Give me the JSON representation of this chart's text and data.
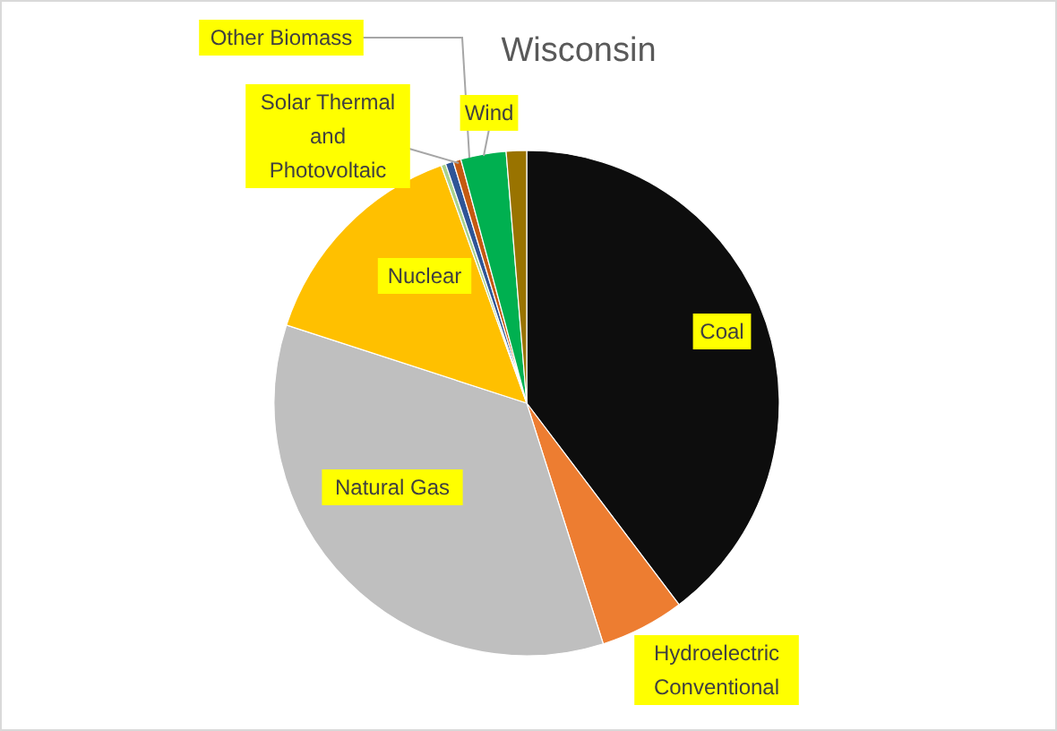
{
  "chart_data": {
    "type": "pie",
    "title": "Wisconsin",
    "categories": [
      "Coal",
      "Hydroelectric Conventional",
      "Natural Gas",
      "Nuclear",
      null,
      "Solar Thermal and Photovoltaic",
      "Other Biomass",
      "Wind",
      null
    ],
    "values": [
      39.7,
      5.4,
      34.9,
      14.5,
      0.3,
      0.5,
      0.5,
      2.9,
      1.3
    ],
    "colors": [
      "#0d0d0d",
      "#ed7d31",
      "#bfbfbf",
      "#ffc000",
      "#a9d18e",
      "#2f5597",
      "#c55a11",
      "#00b050",
      "#997300"
    ]
  }
}
